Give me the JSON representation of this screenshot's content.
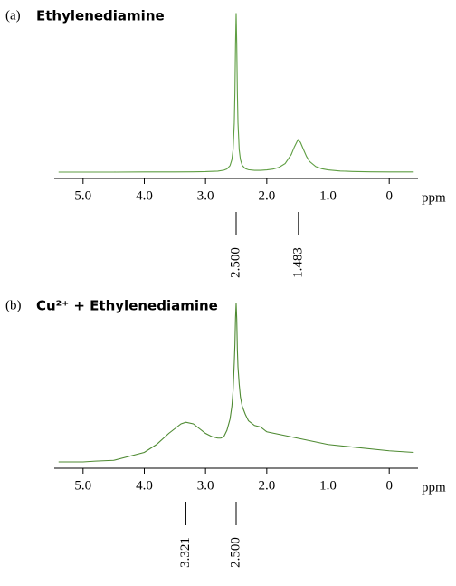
{
  "chart_data": [
    {
      "type": "line",
      "panel_label": "(a)",
      "title": "Ethylenediamine",
      "xlabel": "ppm",
      "color": "#5f9e43",
      "x": [
        5.4,
        5.0,
        4.5,
        4.0,
        3.5,
        3.2,
        3.0,
        2.8,
        2.7,
        2.65,
        2.6,
        2.57,
        2.55,
        2.53,
        2.52,
        2.51,
        2.5,
        2.49,
        2.48,
        2.47,
        2.45,
        2.43,
        2.4,
        2.35,
        2.3,
        2.2,
        2.1,
        2.0,
        1.9,
        1.8,
        1.7,
        1.6,
        1.55,
        1.5,
        1.483,
        1.45,
        1.4,
        1.35,
        1.3,
        1.2,
        1.1,
        1.0,
        0.8,
        0.6,
        0.3,
        0,
        -0.4
      ],
      "values": [
        0,
        0,
        0,
        0.1,
        0.1,
        0.2,
        0.3,
        0.6,
        1.2,
        2.0,
        4.1,
        7.8,
        14.1,
        31.1,
        50.3,
        80.3,
        100.3,
        80.4,
        50.4,
        31.2,
        14.2,
        7.9,
        4.2,
        2.2,
        1.5,
        1.1,
        1.1,
        1.4,
        1.9,
        3.0,
        5.4,
        11.1,
        15.8,
        19.7,
        20.0,
        18.8,
        14.2,
        9.8,
        6.7,
        3.5,
        2.1,
        1.4,
        0.7,
        0.4,
        0.2,
        0.1,
        0.1
      ],
      "xlim": [
        5.47,
        -0.47
      ],
      "ylim": [
        0,
        100
      ],
      "xticks": [
        {
          "value": 5,
          "label": "5.0"
        },
        {
          "value": 4,
          "label": "4.0"
        },
        {
          "value": 3,
          "label": "3.0"
        },
        {
          "value": 2,
          "label": "2.0"
        },
        {
          "value": 1,
          "label": "1.0"
        },
        0
      ],
      "peaks": [
        {
          "value": 2.5,
          "label": "2.500"
        },
        {
          "value": 1.483,
          "label": "1.483"
        }
      ]
    },
    {
      "type": "line",
      "panel_label": "(b)",
      "title": "Cu²⁺ + Ethylenediamine",
      "xlabel": "ppm",
      "color": "#4e8a32",
      "x": [
        5.4,
        5.0,
        4.8,
        4.5,
        4.0,
        3.8,
        3.6,
        3.5,
        3.4,
        3.321,
        3.2,
        3.1,
        3.0,
        2.9,
        2.8,
        2.75,
        2.7,
        2.65,
        2.6,
        2.57,
        2.55,
        2.53,
        2.52,
        2.51,
        2.5,
        2.49,
        2.48,
        2.47,
        2.45,
        2.43,
        2.4,
        2.35,
        2.3,
        2.2,
        2.1,
        2.0,
        1.5,
        1.0,
        0,
        -0.4
      ],
      "values": [
        0,
        0,
        0.5,
        1,
        6,
        11,
        18,
        21,
        24,
        25,
        24,
        21,
        18,
        16,
        15,
        15,
        16,
        20,
        27,
        35,
        45,
        63,
        74,
        91,
        100,
        90,
        71,
        60,
        49,
        41,
        35,
        30,
        26,
        23,
        22,
        19,
        15,
        11,
        7,
        6
      ],
      "xlim": [
        5.47,
        -0.47
      ],
      "ylim": [
        0,
        100
      ],
      "xticks": [
        {
          "value": 5,
          "label": "5.0"
        },
        {
          "value": 4,
          "label": "4.0"
        },
        {
          "value": 3,
          "label": "3.0"
        },
        {
          "value": 2,
          "label": "2.0"
        },
        {
          "value": 1,
          "label": "1.0"
        },
        0
      ],
      "peaks": [
        {
          "value": 3.321,
          "label": "3.321"
        },
        {
          "value": 2.5,
          "label": "2.500"
        }
      ]
    }
  ]
}
